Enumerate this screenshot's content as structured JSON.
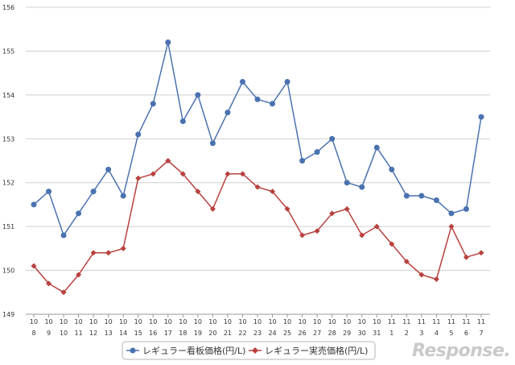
{
  "watermark": "Response.",
  "chart_data": {
    "type": "line",
    "categories": [
      [
        "10",
        "8"
      ],
      [
        "10",
        "9"
      ],
      [
        "10",
        "10"
      ],
      [
        "10",
        "11"
      ],
      [
        "10",
        "12"
      ],
      [
        "10",
        "13"
      ],
      [
        "10",
        "14"
      ],
      [
        "10",
        "15"
      ],
      [
        "10",
        "16"
      ],
      [
        "10",
        "17"
      ],
      [
        "10",
        "18"
      ],
      [
        "10",
        "19"
      ],
      [
        "10",
        "20"
      ],
      [
        "10",
        "21"
      ],
      [
        "10",
        "22"
      ],
      [
        "10",
        "23"
      ],
      [
        "10",
        "24"
      ],
      [
        "10",
        "25"
      ],
      [
        "10",
        "26"
      ],
      [
        "10",
        "27"
      ],
      [
        "10",
        "28"
      ],
      [
        "10",
        "29"
      ],
      [
        "10",
        "30"
      ],
      [
        "10",
        "31"
      ],
      [
        "11",
        "1"
      ],
      [
        "11",
        "2"
      ],
      [
        "11",
        "3"
      ],
      [
        "11",
        "4"
      ],
      [
        "11",
        "5"
      ],
      [
        "11",
        "6"
      ],
      [
        "11",
        "7"
      ]
    ],
    "series": [
      {
        "name": "レギュラー看板価格(円/L)",
        "color": "#4a72b0",
        "marker": "circle",
        "values": [
          151.5,
          151.8,
          150.8,
          151.3,
          151.8,
          152.3,
          151.7,
          153.1,
          153.8,
          155.2,
          153.4,
          154.0,
          152.9,
          153.6,
          154.3,
          153.9,
          153.8,
          154.3,
          152.5,
          152.7,
          153.0,
          152.0,
          151.9,
          152.8,
          152.3,
          151.7,
          151.7,
          151.6,
          151.3,
          151.4,
          153.5
        ]
      },
      {
        "name": "レギュラー実売価格(円/L)",
        "color": "#b8413e",
        "marker": "diamond",
        "values": [
          150.1,
          149.7,
          149.5,
          149.9,
          150.4,
          150.4,
          150.5,
          152.1,
          152.2,
          152.5,
          152.2,
          151.8,
          151.4,
          152.2,
          152.2,
          151.9,
          151.8,
          151.4,
          150.8,
          150.9,
          151.3,
          151.4,
          150.8,
          151.0,
          150.6,
          150.2,
          149.9,
          149.8,
          151.0,
          150.3,
          150.4
        ]
      }
    ],
    "yticks": [
      "149",
      "150",
      "151",
      "152",
      "153",
      "154",
      "155",
      "156"
    ],
    "ylim": [
      149,
      156
    ],
    "grid": true,
    "legend_position": "bottom"
  }
}
